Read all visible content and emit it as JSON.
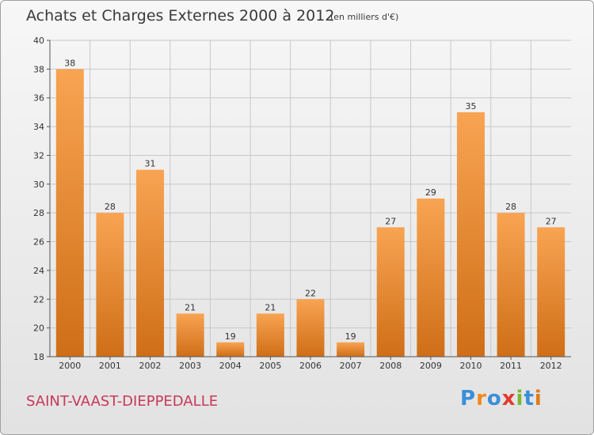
{
  "header": {
    "title": "Achats et Charges Externes 2000 à 2012",
    "subtitle": "(en milliers d'€)"
  },
  "footer": {
    "commune": "SAINT-VAAST-DIEPPEDALLE",
    "logo_text": "Proxiti",
    "logo_letters": [
      "P",
      "r",
      "o",
      "x",
      "i",
      "t",
      "i"
    ],
    "logo_colors": [
      "#3a8fd8",
      "#f08a1c",
      "#3a8fd8",
      "#e03b2c",
      "#7ab834",
      "#3a8fd8",
      "#e07a1c"
    ]
  },
  "colors": {
    "bar_light": "#f8a452",
    "bar_dark": "#cf6e17",
    "grid": "#c8c8c8",
    "axis": "#555555",
    "commune": "#c8385a"
  },
  "chart_data": {
    "type": "bar",
    "categories": [
      "2000",
      "2001",
      "2002",
      "2003",
      "2004",
      "2005",
      "2006",
      "2007",
      "2008",
      "2009",
      "2010",
      "2011",
      "2012"
    ],
    "values": [
      38,
      28,
      31,
      21,
      19,
      21,
      22,
      19,
      27,
      29,
      35,
      28,
      27
    ],
    "ylim": [
      18,
      40
    ],
    "yticks": [
      "18",
      "20",
      "22",
      "24",
      "26",
      "28",
      "30",
      "32",
      "34",
      "36",
      "38",
      "40"
    ],
    "title": "Achats et Charges Externes 2000 à 2012",
    "subtitle": "(en milliers d'€)",
    "grid": true
  }
}
